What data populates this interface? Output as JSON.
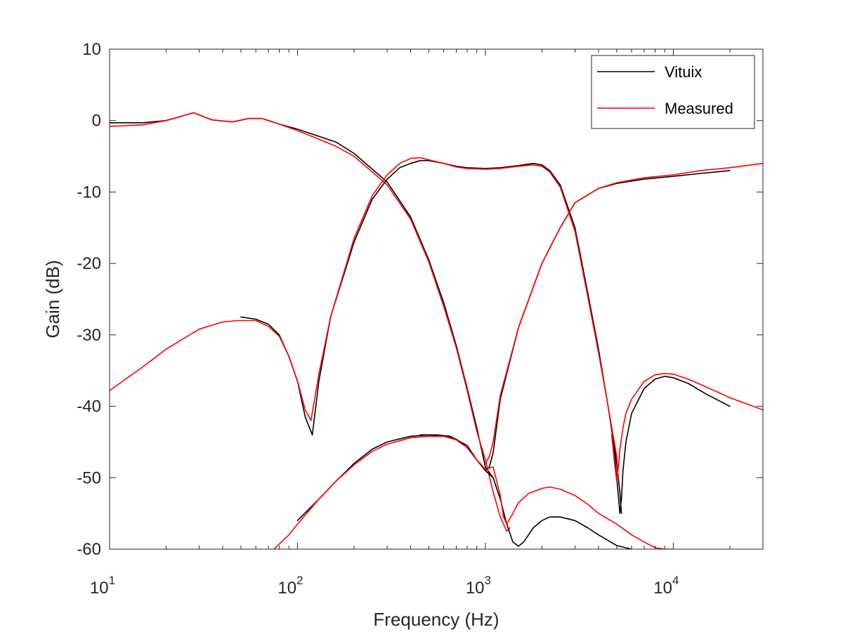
{
  "chart_data": {
    "type": "line",
    "xscale": "log",
    "xlabel": "Frequency (Hz)",
    "ylabel": "Gain (dB)",
    "xlim": [
      10,
      30000
    ],
    "ylim": [
      -60,
      10
    ],
    "yticks": [
      -60,
      -50,
      -40,
      -30,
      -20,
      -10,
      0,
      10
    ],
    "ytick_labels": [
      "-60",
      "-50",
      "-40",
      "-30",
      "-20",
      "-10",
      "0",
      "10"
    ],
    "xticks": [
      10,
      100,
      1000,
      10000
    ],
    "xtick_labels": [
      {
        "base": "10",
        "exp": "1"
      },
      {
        "base": "10",
        "exp": "2"
      },
      {
        "base": "10",
        "exp": "3"
      },
      {
        "base": "10",
        "exp": "4"
      }
    ],
    "grid": false,
    "legend_position": "top-right",
    "legend": [
      {
        "label": "Vituix",
        "color": "#000000"
      },
      {
        "label": "Measured",
        "color": "#ff0000"
      }
    ],
    "series": [
      {
        "name": "Vituix",
        "group": "woofer",
        "color": "#000000",
        "x": [
          10,
          15,
          20,
          28,
          35,
          45,
          55,
          65,
          80,
          100,
          130,
          160,
          200,
          250,
          300,
          400,
          500,
          600,
          700,
          800,
          900,
          1000,
          1100
        ],
        "y": [
          -0.3,
          -0.3,
          0,
          1.1,
          0.1,
          -0.2,
          0.3,
          0.3,
          -0.5,
          -1.2,
          -2.2,
          -3,
          -4.6,
          -6.8,
          -8.6,
          -13.5,
          -19.5,
          -25.5,
          -31.5,
          -37.5,
          -43,
          -48.5,
          -50
        ]
      },
      {
        "name": "Measured",
        "group": "woofer",
        "color": "#ff0000",
        "x": [
          10,
          15,
          20,
          28,
          35,
          45,
          55,
          65,
          80,
          100,
          130,
          160,
          200,
          250,
          300,
          400,
          500,
          600,
          700,
          800,
          900,
          1000,
          1100,
          1200,
          1300,
          1350
        ],
        "y": [
          -0.8,
          -0.6,
          0,
          1.1,
          0.1,
          -0.2,
          0.3,
          0.3,
          -0.5,
          -1.4,
          -2.6,
          -3.6,
          -5,
          -7.2,
          -9,
          -13.8,
          -19.8,
          -26,
          -31.8,
          -37.8,
          -43.5,
          -47.5,
          -52,
          -55.5,
          -57.5,
          -57
        ]
      },
      {
        "name": "Vituix",
        "group": "midrange",
        "color": "#000000",
        "x": [
          50,
          60,
          70,
          80,
          90,
          100,
          110,
          120,
          130,
          150,
          200,
          250,
          300,
          350,
          400,
          450,
          500,
          600,
          700,
          800,
          1000,
          1200,
          1500,
          1800,
          2000,
          2200,
          2500,
          3000,
          3500,
          4000,
          4500,
          5000,
          5200,
          5300
        ],
        "y": [
          -27.5,
          -27.8,
          -28.5,
          -30,
          -33,
          -36.5,
          -41.5,
          -44,
          -36.5,
          -27.5,
          -17,
          -11,
          -8.2,
          -6.6,
          -6,
          -5.6,
          -5.6,
          -6,
          -6.4,
          -6.6,
          -6.7,
          -6.6,
          -6.3,
          -6,
          -6.2,
          -7,
          -9,
          -15,
          -24,
          -32,
          -40,
          -48,
          -52,
          -55
        ]
      },
      {
        "name": "Measured",
        "group": "midrange",
        "color": "#ff0000",
        "x": [
          10,
          15,
          20,
          30,
          40,
          48,
          60,
          70,
          80,
          90,
          100,
          110,
          118,
          130,
          150,
          200,
          250,
          300,
          350,
          400,
          450,
          500,
          600,
          700,
          800,
          1000,
          1200,
          1500,
          1800,
          2000,
          2200,
          2500,
          3000,
          3500,
          4000,
          4500,
          5000,
          5100
        ],
        "y": [
          -37.8,
          -34.5,
          -32,
          -29.2,
          -28.2,
          -28,
          -28,
          -28.8,
          -30.2,
          -33,
          -36.5,
          -40.5,
          -42,
          -35.5,
          -27.5,
          -16.5,
          -10.5,
          -7.6,
          -6,
          -5.3,
          -5.2,
          -5.5,
          -6,
          -6.5,
          -6.7,
          -6.8,
          -6.7,
          -6.4,
          -6.2,
          -6.4,
          -7.2,
          -9.3,
          -15.5,
          -24.5,
          -32.5,
          -40,
          -47,
          -50
        ]
      },
      {
        "name": "Vituix",
        "group": "tweeter",
        "color": "#000000",
        "x": [
          450,
          550,
          650,
          800,
          900,
          1000,
          1050,
          1100,
          1200,
          1500,
          2000,
          2500,
          3000,
          4000,
          5000,
          7000,
          10000,
          14000,
          20000
        ],
        "y": [
          -44,
          -44,
          -44.2,
          -45.5,
          -47.5,
          -49,
          -48.5,
          -46.5,
          -39,
          -29,
          -20,
          -15,
          -11.5,
          -9.5,
          -8.8,
          -8.2,
          -7.8,
          -7.4,
          -7
        ]
      },
      {
        "name": "Measured",
        "group": "tweeter",
        "color": "#ff0000",
        "x": [
          1000,
          1050,
          1100,
          1200,
          1500,
          2000,
          2500,
          3000,
          4000,
          5000,
          7000,
          10000,
          14000,
          20000,
          30000
        ],
        "y": [
          -48,
          -47,
          -45,
          -38.5,
          -29,
          -20,
          -15,
          -11.5,
          -9.5,
          -8.7,
          -8,
          -7.6,
          -7,
          -6.6,
          -6
        ]
      },
      {
        "name": "Vituix",
        "group": "tweeter-leak",
        "color": "#000000",
        "x": [
          4800,
          5000,
          5100,
          5200,
          5300,
          5400,
          5600,
          6000,
          7000,
          8000,
          9000,
          10000,
          12000,
          15000,
          20000
        ],
        "y": [
          -45,
          -50,
          -52.5,
          -55,
          -53,
          -49,
          -45,
          -41,
          -37.5,
          -36.2,
          -35.8,
          -36,
          -36.8,
          -38.3,
          -40
        ]
      },
      {
        "name": "Measured",
        "group": "tweeter-leak",
        "color": "#ff0000",
        "x": [
          4700,
          4900,
          5000,
          5100,
          5200,
          5400,
          5600,
          6000,
          7000,
          8000,
          9000,
          10000,
          12000,
          15000,
          20000,
          30000
        ],
        "y": [
          -44,
          -48.5,
          -50.5,
          -48.5,
          -46,
          -43,
          -41,
          -39,
          -36.5,
          -35.6,
          -35.4,
          -35.5,
          -36.2,
          -37.3,
          -38.8,
          -40.5
        ]
      },
      {
        "name": "Vituix",
        "group": "woofer-leak",
        "color": "#000000",
        "x": [
          100,
          130,
          160,
          200,
          250,
          300,
          400,
          500,
          600,
          700,
          800,
          900,
          1000,
          1100,
          1200,
          1300,
          1400,
          1500,
          1600,
          1800,
          2000,
          2200,
          2500,
          3000,
          3500,
          4000,
          5000,
          6000
        ],
        "y": [
          -56,
          -53,
          -50.5,
          -48,
          -46,
          -45,
          -44.2,
          -44,
          -44.1,
          -44.6,
          -45.8,
          -47.5,
          -49,
          -50,
          -53,
          -56.5,
          -59,
          -59.6,
          -59,
          -57,
          -56,
          -55.5,
          -55.5,
          -56,
          -57,
          -58,
          -59.5,
          -60
        ]
      },
      {
        "name": "Measured",
        "group": "woofer-leak",
        "color": "#ff0000",
        "x": [
          75,
          90,
          100,
          130,
          160,
          200,
          250,
          300,
          400,
          500,
          600,
          700,
          800,
          900,
          1000,
          1100,
          1200,
          1250,
          1300,
          1400,
          1500,
          1700,
          2000,
          2200,
          2500,
          3000,
          3500,
          4000,
          5000,
          6000,
          7000,
          8000,
          9000,
          10000
        ],
        "y": [
          -60,
          -58,
          -56.5,
          -53,
          -50.5,
          -48.2,
          -46.3,
          -45.3,
          -44.4,
          -44.2,
          -44.2,
          -44.7,
          -45.8,
          -47.5,
          -48.8,
          -48.5,
          -52.5,
          -55.5,
          -56.5,
          -55,
          -53.5,
          -52.2,
          -51.5,
          -51.3,
          -51.6,
          -52.5,
          -53.7,
          -55,
          -56.5,
          -58,
          -59,
          -59.8,
          -60,
          -60
        ]
      }
    ]
  }
}
